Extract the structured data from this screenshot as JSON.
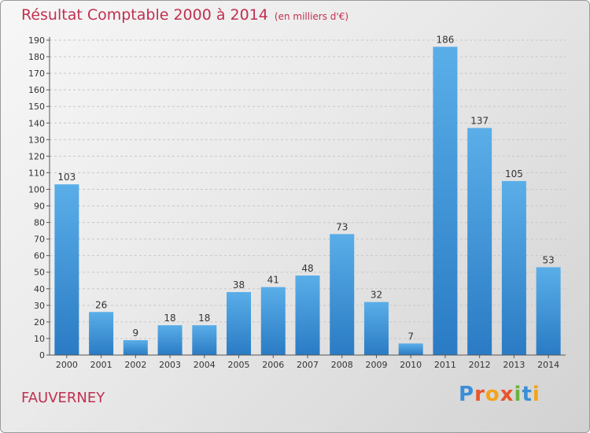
{
  "header": {
    "title": "Résultat Comptable 2000 à 2014",
    "unit": "(en milliers d'€)"
  },
  "footer": {
    "city": "FAUVERNEY",
    "logo": [
      "P",
      "r",
      "o",
      "x",
      "i",
      "t",
      "i"
    ]
  },
  "colors": {
    "title": "#c0304f",
    "bar_light": "#5aaee8",
    "bar_dark": "#2a7bc4",
    "grid": "#cccccc"
  },
  "chart_data": {
    "type": "bar",
    "categories": [
      "2000",
      "2001",
      "2002",
      "2003",
      "2004",
      "2005",
      "2006",
      "2007",
      "2008",
      "2009",
      "2010",
      "2011",
      "2012",
      "2013",
      "2014"
    ],
    "values": [
      103,
      26,
      9,
      18,
      18,
      38,
      41,
      48,
      73,
      32,
      7,
      186,
      137,
      105,
      53
    ],
    "ylim": [
      0,
      190
    ],
    "yticks": [
      0,
      10,
      20,
      30,
      40,
      50,
      60,
      70,
      80,
      90,
      100,
      110,
      120,
      130,
      140,
      150,
      160,
      170,
      180,
      190
    ],
    "grid": true,
    "title": "Résultat Comptable 2000 à 2014",
    "xlabel": "",
    "ylabel": ""
  }
}
